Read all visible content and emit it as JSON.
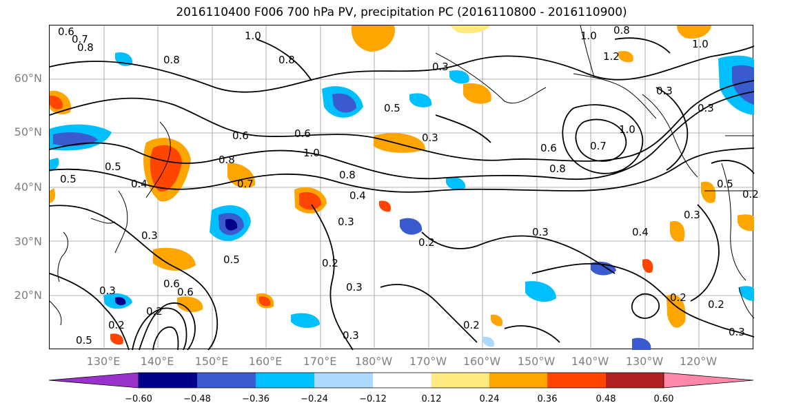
{
  "title": "2016110400 F006 700 hPa PV, precipitation PC (2016110800 - 2016110900)",
  "lat_labels": [
    "60°N",
    "50°N",
    "40°N",
    "30°N",
    "20°N"
  ],
  "lon_labels": [
    "130°E",
    "140°E",
    "150°E",
    "160°E",
    "170°E",
    "180°W",
    "170°W",
    "160°W",
    "150°W",
    "140°W",
    "130°W",
    "120°W"
  ],
  "colorbar": {
    "colors": [
      "#9932cc",
      "#00008b",
      "#3a5bd0",
      "#00bfff",
      "#add8ff",
      "#ffffff",
      "#ffea80",
      "#ffa500",
      "#ff4500",
      "#b22222",
      "#ff88aa"
    ],
    "ticks": [
      "−0.60",
      "−0.48",
      "−0.36",
      "−0.24",
      "−0.12",
      "0.12",
      "0.24",
      "0.36",
      "0.48",
      "0.60"
    ]
  },
  "contour_labels": [
    "0.6",
    "0.7",
    "0.8",
    "1.0",
    "0.8",
    "1.0",
    "0.8",
    "1.2",
    "1.0",
    "0.8",
    "0.3",
    "0.3",
    "0.5",
    "0.3",
    "0.6",
    "0.8",
    "0.6",
    "1.0",
    "0.8",
    "0.4",
    "0.7",
    "0.5",
    "0.5",
    "0.4",
    "0.3",
    "0.3",
    "0.2",
    "0.5",
    "0.6",
    "0.3",
    "0.2",
    "0.3",
    "0.3",
    "0.2",
    "0.2",
    "0.3",
    "0.8",
    "0.6",
    "0.7",
    "1.0",
    "0.3",
    "0.4",
    "0.3",
    "0.5",
    "0.2",
    "0.2",
    "0.2",
    "0.3",
    "0.6",
    "0.5",
    "0.2"
  ]
}
